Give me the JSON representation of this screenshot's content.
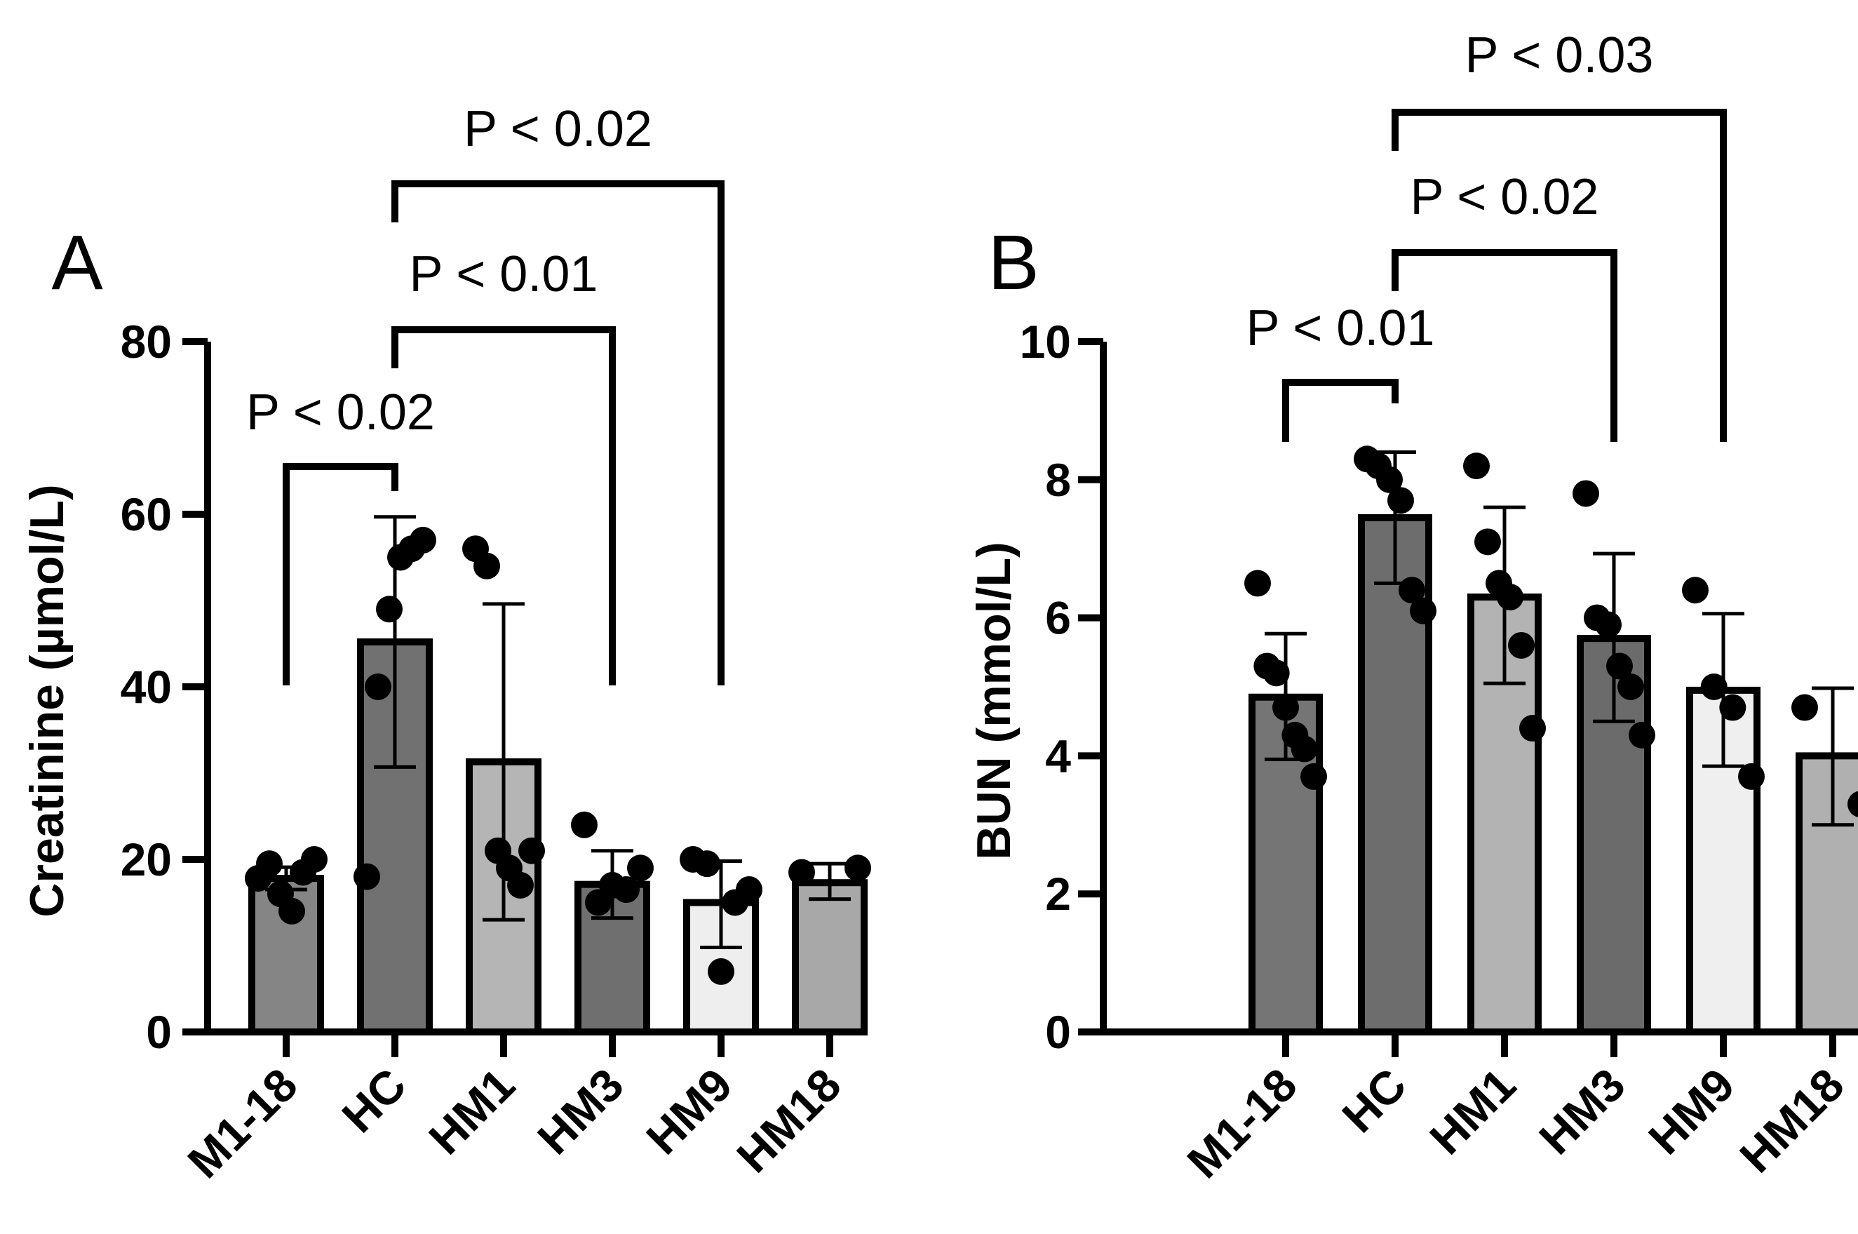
{
  "chart_data": [
    {
      "type": "bar",
      "panel": "A",
      "ylabel": "Creatinine (µmol/L)",
      "xlabel": "",
      "ylim": [
        0,
        80
      ],
      "yticks": [
        0,
        20,
        40,
        60,
        80
      ],
      "categories": [
        "M1-18",
        "HC",
        "HM1",
        "HM3",
        "HM9",
        "HM18"
      ],
      "values": [
        17.8,
        45.2,
        31.3,
        17.1,
        15.0,
        17.3
      ],
      "error_low": [
        16.5,
        30.7,
        13.0,
        13.2,
        9.8,
        15.4
      ],
      "error_high": [
        19.1,
        59.7,
        49.6,
        21.0,
        19.8,
        19.5
      ],
      "points": [
        [
          17.8,
          19.5,
          16.0,
          14.0,
          18.5,
          20.0
        ],
        [
          18.0,
          40.0,
          49.0,
          55.0,
          56.0,
          57.0
        ],
        [
          56.0,
          54.0,
          21.0,
          19.0,
          17.0,
          21.0
        ],
        [
          24.0,
          15.0,
          17.0,
          16.5,
          19.0
        ],
        [
          20.0,
          19.5,
          7.0,
          15.0,
          16.5
        ],
        [
          18.5,
          19.0
        ]
      ],
      "bar_colors": [
        "#858585",
        "#717171",
        "#b5b5b5",
        "#6f6f6f",
        "#eeeeee",
        "#a8a8a8"
      ],
      "annotations": [
        {
          "text": "P < 0.02",
          "from": 0,
          "to": 1
        },
        {
          "text": "P < 0.01",
          "from": 1,
          "to": 3
        },
        {
          "text": "P < 0.02",
          "from": 1,
          "to": 4
        }
      ]
    },
    {
      "type": "bar",
      "panel": "B",
      "ylabel": "BUN (mmol/L)",
      "xlabel": "",
      "ylim": [
        0,
        10
      ],
      "yticks": [
        0,
        2,
        4,
        6,
        8,
        10
      ],
      "categories": [
        "M1-18",
        "HC",
        "HM1",
        "HM3",
        "HM9",
        "HM18"
      ],
      "values": [
        4.85,
        7.45,
        6.3,
        5.7,
        4.95,
        4.0
      ],
      "error_low": [
        3.95,
        6.5,
        5.05,
        4.5,
        3.85,
        3.0
      ],
      "error_high": [
        5.77,
        8.4,
        7.6,
        6.93,
        6.06,
        4.98
      ],
      "points": [
        [
          6.5,
          5.3,
          5.2,
          4.7,
          4.3,
          4.1,
          3.7
        ],
        [
          8.3,
          8.2,
          8.0,
          7.7,
          6.4,
          6.1
        ],
        [
          8.2,
          7.1,
          6.5,
          6.3,
          5.6,
          4.4
        ],
        [
          7.8,
          6.0,
          5.9,
          5.3,
          5.0,
          4.3
        ],
        [
          6.4,
          5.0,
          4.7,
          3.7
        ],
        [
          4.7,
          3.3
        ]
      ],
      "bar_colors": [
        "#757575",
        "#6d6d6d",
        "#b3b3b3",
        "#6b6b6b",
        "#efefef",
        "#b0b0b0"
      ],
      "annotations": [
        {
          "text": "P < 0.01",
          "from": 0,
          "to": 1
        },
        {
          "text": "P < 0.02",
          "from": 1,
          "to": 3
        },
        {
          "text": "P < 0.03",
          "from": 1,
          "to": 4
        }
      ]
    }
  ]
}
